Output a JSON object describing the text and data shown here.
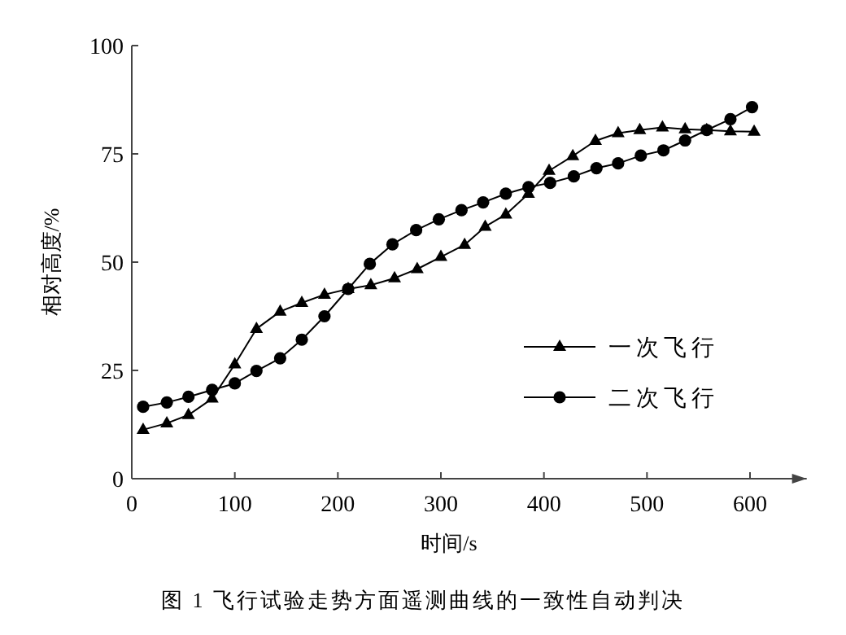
{
  "chart_data": {
    "type": "line",
    "xlabel": "时间/s",
    "ylabel": "相对高度/%",
    "annotations": [
      "图 1  飞行试验走势方面遥测曲线的一致性自动判决"
    ],
    "xlim": [
      0,
      655
    ],
    "ylim": [
      0,
      100
    ],
    "xticks": [
      0,
      100,
      200,
      300,
      400,
      500,
      600
    ],
    "yticks": [
      0,
      25,
      50,
      75,
      100
    ],
    "grid": false,
    "legend": "right",
    "line_style": "solid",
    "series": [
      {
        "name": "一次飞行",
        "color": "#000000",
        "marker": "triangle",
        "x": [
          11,
          34,
          55,
          78,
          100,
          121,
          144,
          165,
          187,
          210,
          232,
          255,
          277,
          300,
          323,
          343,
          363,
          385,
          405,
          428,
          450,
          472,
          493,
          515,
          537,
          558,
          581,
          604
        ],
        "values": [
          11.3,
          12.8,
          14.7,
          18.5,
          26.4,
          34.6,
          38.6,
          40.6,
          42.5,
          43.8,
          44.7,
          46.3,
          48.4,
          51.2,
          54,
          58.2,
          61,
          65.8,
          71.1,
          74.5,
          78,
          79.8,
          80.5,
          81.1,
          80.7,
          80.5,
          80.2,
          80.1
        ]
      },
      {
        "name": "二次飞行",
        "color": "#000000",
        "marker": "circle",
        "x": [
          11,
          34,
          55,
          78,
          100,
          121,
          144,
          165,
          187,
          210,
          231,
          253,
          276,
          298,
          320,
          341,
          363,
          385,
          406,
          429,
          451,
          472,
          494,
          516,
          537,
          558,
          581,
          602
        ],
        "values": [
          16.6,
          17.6,
          18.9,
          20.5,
          22,
          24.9,
          27.8,
          32.1,
          37.5,
          43.8,
          49.6,
          54.1,
          57.4,
          59.9,
          62,
          63.8,
          65.8,
          67.3,
          68.3,
          69.8,
          71.7,
          72.8,
          74.6,
          75.8,
          78.1,
          80.5,
          83,
          85.8
        ]
      }
    ]
  }
}
